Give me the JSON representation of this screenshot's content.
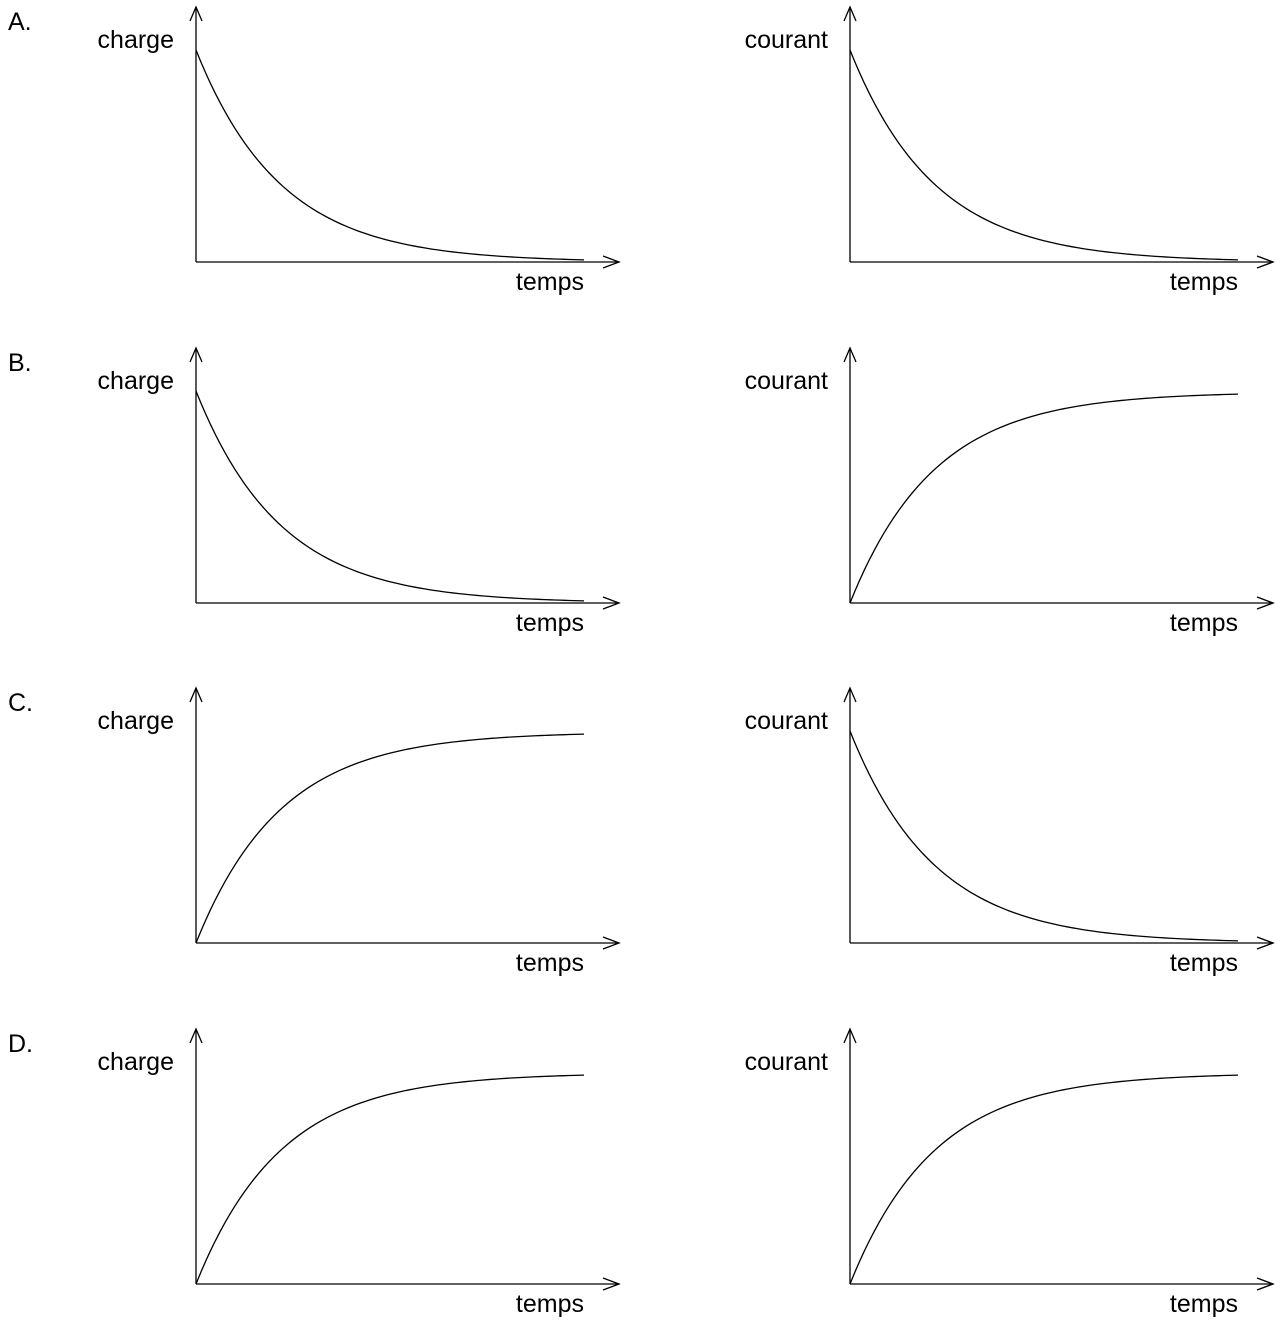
{
  "chart_data": [
    {
      "option": "A.",
      "type": "line",
      "ylabel": "charge",
      "xlabel": "temps",
      "shape": "exponential-decay"
    },
    {
      "option": "A.",
      "type": "line",
      "ylabel": "courant",
      "xlabel": "temps",
      "shape": "exponential-decay"
    },
    {
      "option": "B.",
      "type": "line",
      "ylabel": "charge",
      "xlabel": "temps",
      "shape": "exponential-decay"
    },
    {
      "option": "B.",
      "type": "line",
      "ylabel": "courant",
      "xlabel": "temps",
      "shape": "exponential-growth-saturating"
    },
    {
      "option": "C.",
      "type": "line",
      "ylabel": "charge",
      "xlabel": "temps",
      "shape": "exponential-growth-saturating"
    },
    {
      "option": "C.",
      "type": "line",
      "ylabel": "courant",
      "xlabel": "temps",
      "shape": "exponential-decay"
    },
    {
      "option": "D.",
      "type": "line",
      "ylabel": "charge",
      "xlabel": "temps",
      "shape": "exponential-growth-saturating"
    },
    {
      "option": "D.",
      "type": "line",
      "ylabel": "courant",
      "xlabel": "temps",
      "shape": "exponential-growth-saturating"
    }
  ]
}
